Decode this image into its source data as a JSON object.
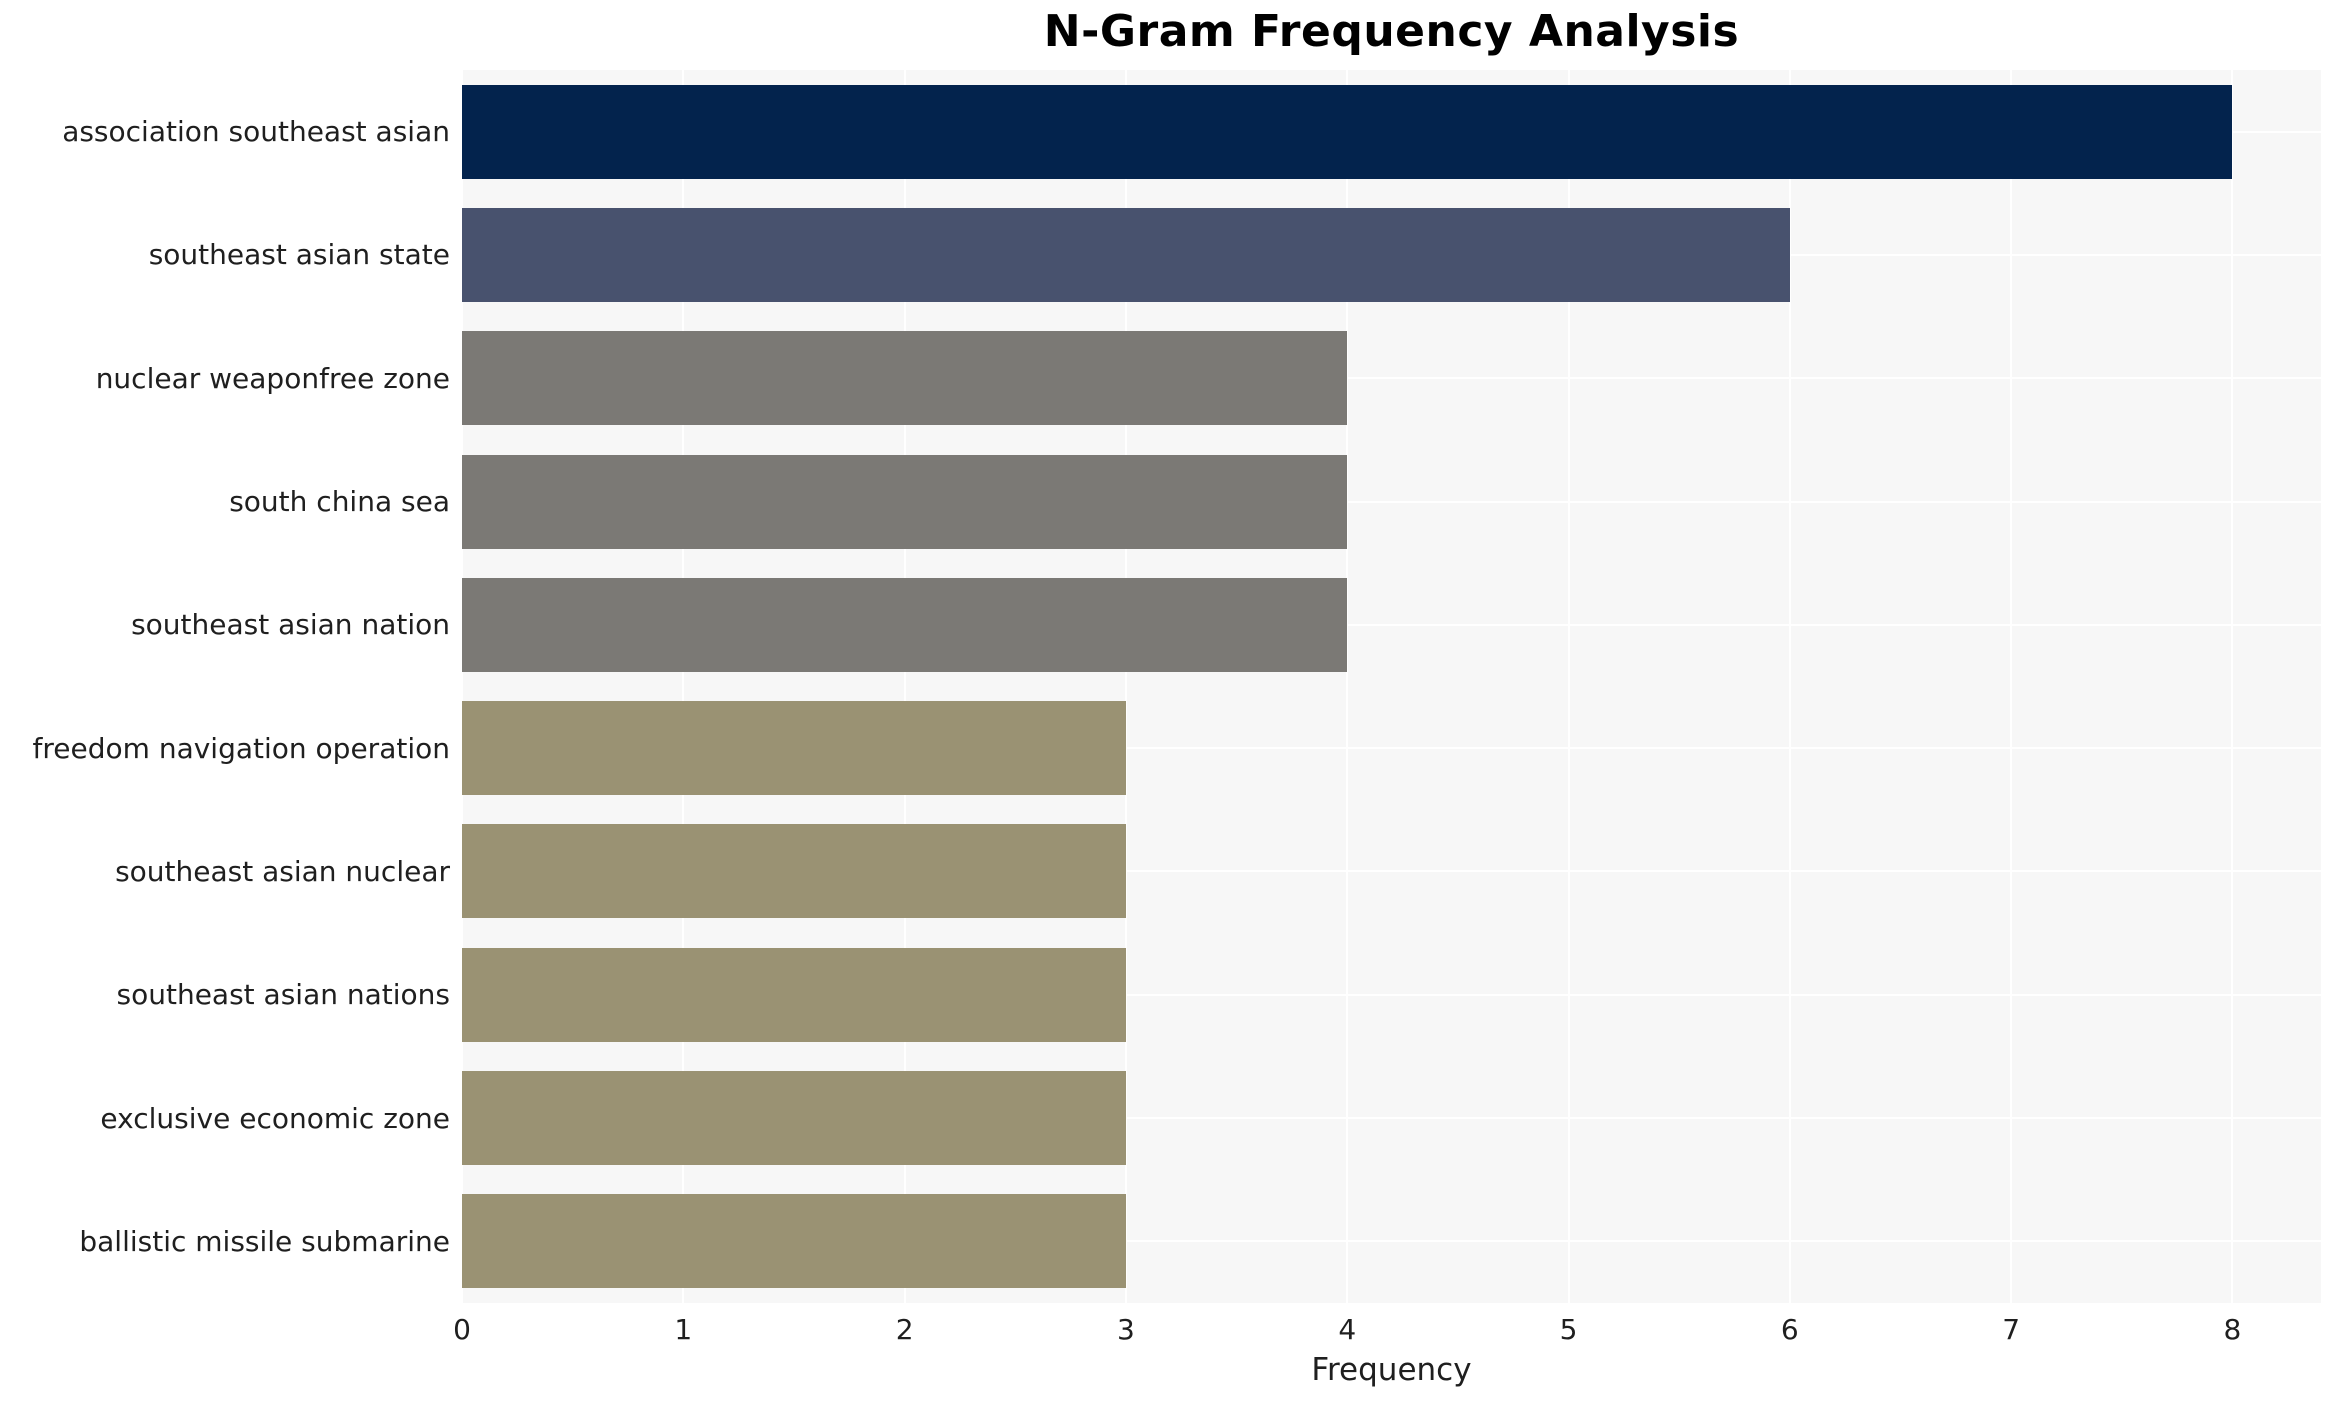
{
  "chart_data": {
    "type": "bar",
    "orientation": "horizontal",
    "title": "N-Gram Frequency Analysis",
    "xlabel": "Frequency",
    "ylabel": "",
    "categories": [
      "association southeast asian",
      "southeast asian state",
      "nuclear weaponfree zone",
      "south china sea",
      "southeast asian nation",
      "freedom navigation operation",
      "southeast asian nuclear",
      "southeast asian nations",
      "exclusive economic zone",
      "ballistic missile submarine"
    ],
    "values": [
      8,
      6,
      4,
      4,
      4,
      3,
      3,
      3,
      3,
      3
    ],
    "bar_colors": [
      "#03234d",
      "#48526e",
      "#7b7975",
      "#7b7975",
      "#7b7975",
      "#9a9273",
      "#9a9273",
      "#9a9273",
      "#9a9273",
      "#9a9273"
    ],
    "x_ticks": [
      "0",
      "1",
      "2",
      "3",
      "4",
      "5",
      "6",
      "7",
      "8"
    ],
    "xlim": [
      0,
      8.4
    ],
    "grid": true,
    "legend": "none",
    "plot_background": "#f7f7f7",
    "grid_color": "#ffffff",
    "text_color": "#1f1f1f"
  }
}
